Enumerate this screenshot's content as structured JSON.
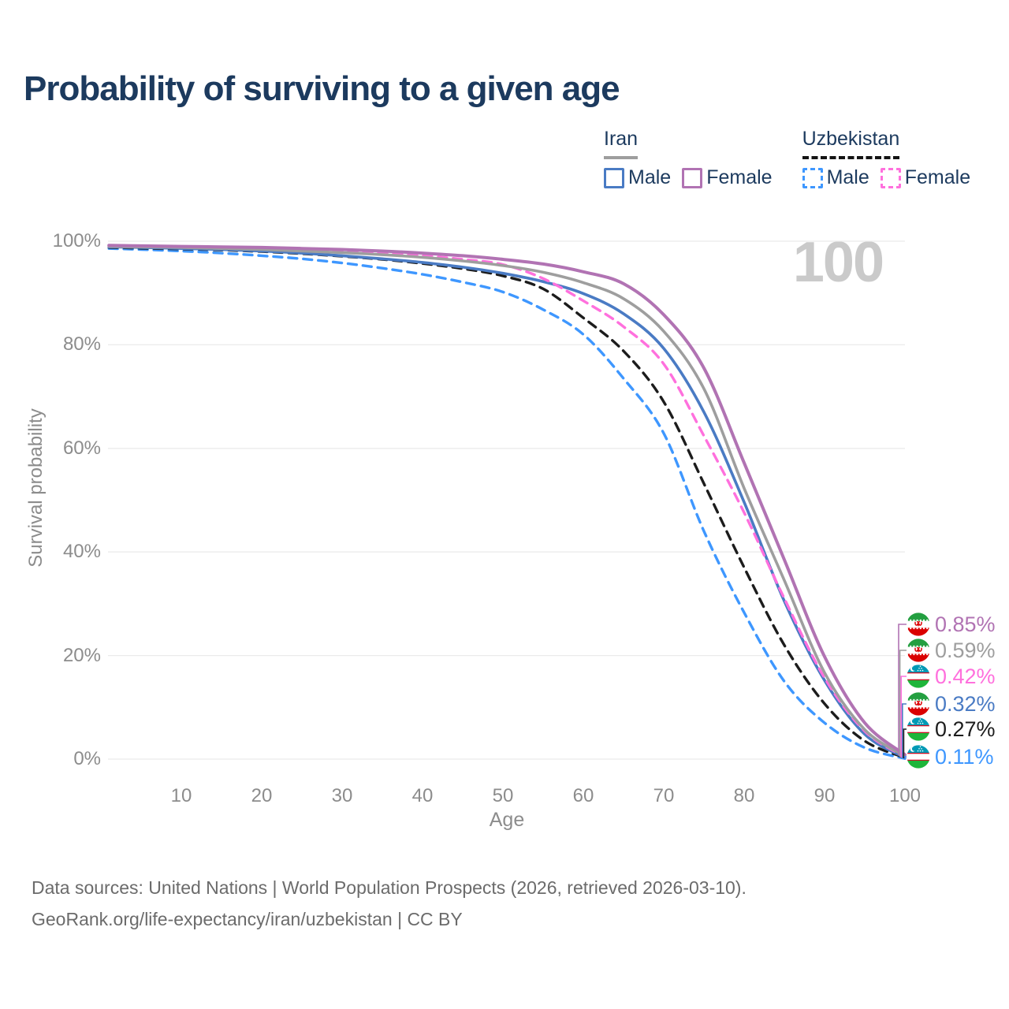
{
  "title": "Probability of surviving to a given age",
  "watermark": "100",
  "legend": {
    "groups": [
      {
        "label": "Iran",
        "line_style": "solid",
        "underline_color": "#9e9e9e",
        "items": [
          {
            "label": "Male",
            "color": "#4a7bc4",
            "dashed": false
          },
          {
            "label": "Female",
            "color": "#b173b3",
            "dashed": false
          }
        ]
      },
      {
        "label": "Uzbekistan",
        "line_style": "dashed",
        "underline_color": "#141414",
        "items": [
          {
            "label": "Male",
            "color": "#3e97ff",
            "dashed": true
          },
          {
            "label": "Female",
            "color": "#ff70dd",
            "dashed": true
          }
        ]
      }
    ]
  },
  "chart_data": {
    "type": "line",
    "title": "Probability of surviving to a given age",
    "xlabel": "Age",
    "ylabel": "Survival probability",
    "xlim": [
      0,
      100
    ],
    "ylim": [
      0,
      100
    ],
    "grid": "horizontal",
    "legend_position": "top-right",
    "x_ticks": [
      10,
      20,
      30,
      40,
      50,
      60,
      70,
      80,
      90,
      100
    ],
    "y_ticks": [
      0,
      20,
      40,
      60,
      80,
      100
    ],
    "y_tick_suffix": "%",
    "x": [
      1,
      5,
      10,
      15,
      20,
      25,
      30,
      35,
      40,
      45,
      50,
      55,
      60,
      65,
      70,
      75,
      80,
      85,
      90,
      95,
      100
    ],
    "series": [
      {
        "name": "Iran Female",
        "country": "iran",
        "color": "#b173b3",
        "dashed": false,
        "width": 4,
        "end_label": "0.85%",
        "values": [
          99.2,
          99.1,
          99.0,
          98.9,
          98.8,
          98.6,
          98.4,
          98.1,
          97.7,
          97.2,
          96.5,
          95.6,
          94.1,
          91.8,
          85.8,
          75.5,
          57.2,
          38.5,
          19.8,
          7.0,
          0.85
        ]
      },
      {
        "name": "Iran",
        "country": "iran",
        "color": "#9e9e9e",
        "dashed": false,
        "width": 3.6,
        "end_label": "0.59%",
        "values": [
          99.0,
          98.9,
          98.8,
          98.6,
          98.4,
          98.1,
          97.8,
          97.4,
          96.9,
          96.2,
          95.3,
          94.0,
          92.0,
          88.9,
          82.6,
          71.5,
          52.3,
          34.5,
          16.7,
          5.7,
          0.59
        ]
      },
      {
        "name": "Uzbekistan Female",
        "country": "uzbekistan",
        "color": "#ff70dd",
        "dashed": true,
        "width": 3.4,
        "end_label": "0.42%",
        "values": [
          99.1,
          99.0,
          98.9,
          98.75,
          98.6,
          98.4,
          98.1,
          97.7,
          97.2,
          96.5,
          95.5,
          92.8,
          88.5,
          83.5,
          76.3,
          62.4,
          47.6,
          31.0,
          15.7,
          5.4,
          0.42
        ]
      },
      {
        "name": "Iran Male",
        "country": "iran",
        "color": "#4a7bc4",
        "dashed": false,
        "width": 3.6,
        "end_label": "0.32%",
        "values": [
          98.9,
          98.8,
          98.6,
          98.4,
          98.1,
          97.7,
          97.2,
          96.6,
          95.9,
          95.0,
          93.8,
          92.2,
          89.9,
          86.0,
          79.3,
          67.0,
          49.6,
          30.5,
          15.2,
          4.8,
          0.32
        ]
      },
      {
        "name": "Uzbekistan",
        "country": "uzbekistan",
        "color": "#1c1c1c",
        "dashed": true,
        "width": 3.4,
        "end_label": "0.27%",
        "values": [
          98.8,
          98.65,
          98.5,
          98.3,
          98.0,
          97.6,
          97.1,
          96.5,
          95.7,
          94.7,
          93.3,
          90.8,
          85.2,
          78.8,
          69.0,
          53.2,
          37.0,
          22.0,
          10.7,
          3.5,
          0.27
        ]
      },
      {
        "name": "Uzbekistan Male",
        "country": "uzbekistan",
        "color": "#3e97ff",
        "dashed": true,
        "width": 3.4,
        "end_label": "0.11%",
        "values": [
          98.6,
          98.4,
          98.1,
          97.7,
          97.2,
          96.6,
          95.8,
          94.8,
          93.6,
          92.1,
          90.2,
          86.8,
          82.0,
          73.5,
          62.9,
          44.0,
          28.3,
          15.0,
          7.0,
          2.2,
          0.11
        ]
      }
    ]
  },
  "flags": {
    "iran": {
      "green": "#239f40",
      "white": "#ffffff",
      "red": "#da0000"
    },
    "uzbekistan": {
      "blue": "#0099b5",
      "white": "#ffffff",
      "red": "#ce1126",
      "green": "#1eb53a"
    }
  },
  "footer": {
    "line1": "Data sources: United Nations | World Population Prospects (2026, retrieved 2026-03-10).",
    "line2": "GeoRank.org/life-expectancy/iran/uzbekistan | CC BY"
  }
}
